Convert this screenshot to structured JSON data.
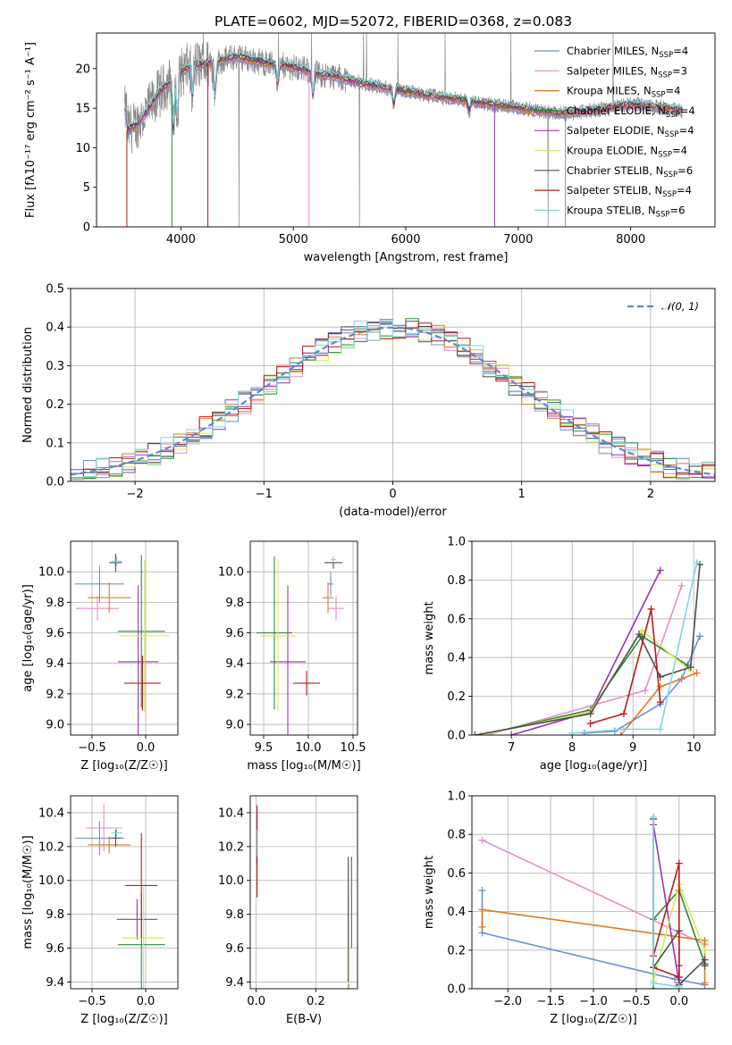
{
  "figure": {
    "title": "PLATE=0602, MJD=52072, FIBERID=0368, z=0.083"
  },
  "colors": [
    "#6a8fd8",
    "#e28fc8",
    "#e07a22",
    "#2a8a3a",
    "#9a33b5",
    "#d4e85a",
    "#4f4f4f",
    "#b71c1c",
    "#7fd8e0"
  ],
  "legend": {
    "models": [
      {
        "name": "Chabrier MILES",
        "nssp": "4"
      },
      {
        "name": "Salpeter MILES",
        "nssp": "3"
      },
      {
        "name": "Kroupa MILES",
        "nssp": "4"
      },
      {
        "name": "Chabrier ELODIE",
        "nssp": "4"
      },
      {
        "name": "Salpeter ELODIE",
        "nssp": "4"
      },
      {
        "name": "Kroupa ELODIE",
        "nssp": "4"
      },
      {
        "name": "Chabrier STELIB",
        "nssp": "6"
      },
      {
        "name": "Salpeter STELIB",
        "nssp": "4"
      },
      {
        "name": "Kroupa STELIB",
        "nssp": "6"
      }
    ],
    "nssp_prefix": "N",
    "nssp_sub": "SSP",
    "normal_label": "𝒩(0, 1)"
  },
  "chart_data": [
    {
      "id": "spectrum",
      "type": "line",
      "xlabel": "wavelength [Angstrom, rest frame]",
      "ylabel": "Flux [fλ10⁻¹⁷ erg cm⁻² s⁻¹ A⁻¹]",
      "xlim": [
        3250,
        8750
      ],
      "ylim": [
        0,
        24.5
      ],
      "xticks": [
        4000,
        5000,
        6000,
        7000,
        8000
      ],
      "yticks": [
        0,
        5,
        10,
        15,
        20
      ],
      "grid": false,
      "legend_position": "top-right",
      "continuum": [
        [
          3520,
          12.2
        ],
        [
          3600,
          12.8
        ],
        [
          3700,
          14.6
        ],
        [
          3800,
          16.8
        ],
        [
          3900,
          18.3
        ],
        [
          4000,
          19.5
        ],
        [
          4100,
          20.4
        ],
        [
          4200,
          20.5
        ],
        [
          4300,
          20.7
        ],
        [
          4400,
          21.2
        ],
        [
          4500,
          21.5
        ],
        [
          4600,
          21.2
        ],
        [
          4800,
          20.6
        ],
        [
          5000,
          20.2
        ],
        [
          5200,
          19.4
        ],
        [
          5400,
          18.9
        ],
        [
          5600,
          18.2
        ],
        [
          5800,
          17.6
        ],
        [
          6000,
          17.1
        ],
        [
          6200,
          16.6
        ],
        [
          6400,
          16.2
        ],
        [
          6600,
          15.8
        ],
        [
          6800,
          15.4
        ],
        [
          7000,
          15.0
        ],
        [
          7200,
          14.6
        ],
        [
          7400,
          14.3
        ],
        [
          7600,
          14.6
        ],
        [
          7800,
          15.0
        ],
        [
          8000,
          15.5
        ],
        [
          8200,
          15.2
        ],
        [
          8450,
          14.7
        ]
      ]
    },
    {
      "id": "residuals",
      "type": "histogram",
      "xlabel": "(data-model)/error",
      "ylabel": "Normed distribution",
      "xlim": [
        -2.5,
        2.5
      ],
      "ylim": [
        0,
        0.5
      ],
      "xticks": [
        -2,
        -1,
        0,
        1,
        2
      ],
      "yticks": [
        0.0,
        0.1,
        0.2,
        0.3,
        0.4,
        0.5
      ],
      "grid": true,
      "legend_position": "top-right",
      "bin_width": 0.1
    },
    {
      "id": "age-vs-Z",
      "type": "errorbar",
      "xlabel": "Z [log₁₀(Z/Z☉)]",
      "ylabel": "age  [log₁₀(age/yr)]",
      "xlim": [
        -0.7,
        0.3
      ],
      "ylim": [
        8.93,
        10.2
      ],
      "xticks": [
        -0.5,
        0.0
      ],
      "yticks": [
        9.0,
        9.2,
        9.4,
        9.6,
        9.8,
        10.0
      ],
      "grid": true,
      "points": [
        {
          "x": -0.43,
          "xerr": 0.23,
          "y": 9.92,
          "yerr": 0.12
        },
        {
          "x": -0.45,
          "xerr": 0.2,
          "y": 9.76,
          "yerr": 0.08
        },
        {
          "x": -0.34,
          "xerr": 0.2,
          "y": 9.83,
          "yerr": 0.1
        },
        {
          "x": -0.04,
          "xerr": 0.22,
          "y": 9.61,
          "yerr": 0.5
        },
        {
          "x": -0.07,
          "xerr": 0.19,
          "y": 9.41,
          "yerr": 0.5
        },
        {
          "x": -0.01,
          "xerr": 0.23,
          "y": 9.58,
          "yerr": 0.5
        },
        {
          "x": -0.28,
          "xerr": 0.06,
          "y": 10.06,
          "yerr": 0.06
        },
        {
          "x": -0.03,
          "xerr": 0.17,
          "y": 9.27,
          "yerr": 0.18
        },
        {
          "x": -0.27,
          "xerr": 0.05,
          "y": 10.07,
          "yerr": 0.03
        }
      ]
    },
    {
      "id": "age-vs-mass",
      "type": "errorbar",
      "xlabel": "mass [log₁₀(M/M☉)]",
      "ylabel": "",
      "xlim": [
        9.35,
        10.55
      ],
      "ylim": [
        8.93,
        10.2
      ],
      "xticks": [
        9.5,
        10.0,
        10.5
      ],
      "yticks": [
        9.0,
        9.2,
        9.4,
        9.6,
        9.8,
        10.0
      ],
      "grid": true,
      "points": [
        {
          "x": 10.25,
          "xerr": 0.03,
          "y": 9.92,
          "yerr": 0.08
        },
        {
          "x": 10.31,
          "xerr": 0.09,
          "y": 9.76,
          "yerr": 0.08
        },
        {
          "x": 10.22,
          "xerr": 0.06,
          "y": 9.83,
          "yerr": 0.1
        },
        {
          "x": 9.62,
          "xerr": 0.2,
          "y": 9.6,
          "yerr": 0.5
        },
        {
          "x": 9.77,
          "xerr": 0.2,
          "y": 9.41,
          "yerr": 0.5
        },
        {
          "x": 9.66,
          "xerr": 0.2,
          "y": 9.58,
          "yerr": 0.5
        },
        {
          "x": 10.28,
          "xerr": 0.1,
          "y": 10.06,
          "yerr": 0.04
        },
        {
          "x": 9.98,
          "xerr": 0.15,
          "y": 9.27,
          "yerr": 0.08
        },
        {
          "x": 10.28,
          "xerr": 0.03,
          "y": 10.08,
          "yerr": 0.02
        }
      ]
    },
    {
      "id": "weight-vs-age",
      "type": "line",
      "xlabel": "age  [log₁₀(age/yr)]",
      "ylabel": "mass weight",
      "xlim": [
        6.35,
        10.35
      ],
      "ylim": [
        0,
        1.0
      ],
      "xticks": [
        7,
        8,
        9,
        10
      ],
      "yticks": [
        0.0,
        0.2,
        0.4,
        0.6,
        0.8,
        1.0
      ],
      "grid": true,
      "series": [
        {
          "x": [
            8.2,
            8.7,
            9.45,
            9.8,
            10.1
          ],
          "y": [
            0.01,
            0.02,
            0.16,
            0.29,
            0.51
          ]
        },
        {
          "x": [
            6.6,
            9.2,
            9.8
          ],
          "y": [
            0.0,
            0.23,
            0.77
          ]
        },
        {
          "x": [
            8.8,
            9.45,
            10.05
          ],
          "y": [
            0.0,
            0.25,
            0.32
          ]
        },
        {
          "x": [
            6.5,
            8.3,
            9.15,
            9.9
          ],
          "y": [
            0.0,
            0.13,
            0.51,
            0.36
          ]
        },
        {
          "x": [
            7.0,
            8.3,
            9.45
          ],
          "y": [
            0.0,
            0.12,
            0.85
          ]
        },
        {
          "x": [
            6.5,
            8.3,
            9.15,
            9.95
          ],
          "y": [
            0.0,
            0.12,
            0.54,
            0.33
          ]
        },
        {
          "x": [
            6.4,
            8.3,
            9.1,
            9.45,
            9.95,
            10.1
          ],
          "y": [
            0.0,
            0.11,
            0.52,
            0.3,
            0.35,
            0.88
          ]
        },
        {
          "x": [
            8.3,
            8.85,
            9.3,
            9.45
          ],
          "y": [
            0.06,
            0.11,
            0.65,
            0.17
          ]
        },
        {
          "x": [
            8.0,
            8.85,
            9.45,
            10.05
          ],
          "y": [
            0.01,
            0.03,
            0.03,
            0.89
          ]
        }
      ]
    },
    {
      "id": "mass-vs-Z",
      "type": "errorbar",
      "xlabel": "Z [log₁₀(Z/Z☉)]",
      "ylabel": "mass [log₁₀(M/M☉)]",
      "xlim": [
        -0.7,
        0.3
      ],
      "ylim": [
        9.36,
        10.5
      ],
      "xticks": [
        -0.5,
        0.0
      ],
      "yticks": [
        9.4,
        9.6,
        9.8,
        10.0,
        10.2,
        10.4
      ],
      "grid": true,
      "points": [
        {
          "x": -0.43,
          "xerr": 0.23,
          "y": 10.25,
          "yerr": 0.1
        },
        {
          "x": -0.39,
          "xerr": 0.17,
          "y": 10.31,
          "yerr": 0.14
        },
        {
          "x": -0.34,
          "xerr": 0.2,
          "y": 10.21,
          "yerr": 0.05
        },
        {
          "x": -0.04,
          "xerr": 0.22,
          "y": 9.62,
          "yerr": 0.3
        },
        {
          "x": -0.08,
          "xerr": 0.19,
          "y": 9.77,
          "yerr": 0.12
        },
        {
          "x": -0.02,
          "xerr": 0.2,
          "y": 9.66,
          "yerr": 0.3
        },
        {
          "x": -0.28,
          "xerr": 0.05,
          "y": 10.25,
          "yerr": 0.05
        },
        {
          "x": -0.04,
          "xerr": 0.15,
          "y": 9.97,
          "yerr": 0.31
        },
        {
          "x": -0.27,
          "xerr": 0.05,
          "y": 10.28,
          "yerr": 0.03
        }
      ]
    },
    {
      "id": "mass-vs-ebv",
      "type": "errorbar",
      "xlabel": "E(B-V)",
      "ylabel": "",
      "xlim": [
        -0.02,
        0.34
      ],
      "ylim": [
        9.36,
        10.5
      ],
      "xticks": [
        0.0,
        0.2
      ],
      "yticks": [
        9.4,
        9.6,
        9.8,
        10.0,
        10.2,
        10.4
      ],
      "grid": true,
      "points": [
        {
          "x": 0.002,
          "xerr": 0,
          "y": 10.25,
          "yerr": 0.15
        },
        {
          "x": 0.002,
          "xerr": 0,
          "y": 10.31,
          "yerr": 0.14
        },
        {
          "x": 0.003,
          "xerr": 0,
          "y": 10.21,
          "yerr": 0.05
        },
        {
          "x": 0.31,
          "xerr": 0,
          "y": 9.62,
          "yerr": 0.28
        },
        {
          "x": 0.32,
          "xerr": 0,
          "y": 9.87,
          "yerr": 0.27
        },
        {
          "x": 0.31,
          "xerr": 0,
          "y": 9.74,
          "yerr": 0.35
        },
        {
          "x": 0.309,
          "xerr": 0,
          "y": 9.77,
          "yerr": 0.37
        },
        {
          "x": 0.003,
          "xerr": 0,
          "y": 10.17,
          "yerr": 0.27
        },
        {
          "x": 0.004,
          "xerr": 0,
          "y": 10.22,
          "yerr": 0.08
        }
      ]
    },
    {
      "id": "weight-vs-Z",
      "type": "line",
      "xlabel": "Z [log₁₀(Z/Z☉)]",
      "ylabel": "mass weight",
      "xlim": [
        -2.42,
        0.42
      ],
      "ylim": [
        0,
        1.0
      ],
      "xticks": [
        -2.0,
        -1.5,
        -1.0,
        -0.5,
        0.0
      ],
      "yticks": [
        0.0,
        0.2,
        0.4,
        0.6,
        0.8,
        1.0
      ],
      "grid": true,
      "series": [
        {
          "x": [
            -2.3,
            -2.3,
            -0.05,
            0.3
          ],
          "y": [
            0.51,
            0.29,
            0.05,
            0.02
          ]
        },
        {
          "x": [
            -2.3,
            0.3
          ],
          "y": [
            0.77,
            0.23
          ]
        },
        {
          "x": [
            -2.3,
            -2.3,
            0.3,
            0.3
          ],
          "y": [
            0.32,
            0.41,
            0.25,
            0.03
          ]
        },
        {
          "x": [
            -0.3,
            -0.3,
            0.0,
            0.3
          ],
          "y": [
            0.0,
            0.36,
            0.51,
            0.13
          ]
        },
        {
          "x": [
            -0.3,
            0.0,
            0.0
          ],
          "y": [
            0.85,
            0.03,
            0.12
          ]
        },
        {
          "x": [
            -0.3,
            0.0,
            0.3,
            0.3
          ],
          "y": [
            0.04,
            0.54,
            0.2,
            0.2
          ]
        },
        {
          "x": [
            -0.3,
            -0.3,
            0.0,
            0.0,
            0.3,
            0.3
          ],
          "y": [
            0.88,
            0.11,
            0.3,
            0.02,
            0.15,
            0.12
          ]
        },
        {
          "x": [
            -0.3,
            0.0,
            0.0,
            -0.3
          ],
          "y": [
            0.17,
            0.65,
            0.06,
            0.11
          ]
        },
        {
          "x": [
            -0.3,
            -0.3,
            0.0
          ],
          "y": [
            0.89,
            0.03,
            0.01
          ]
        }
      ]
    }
  ]
}
